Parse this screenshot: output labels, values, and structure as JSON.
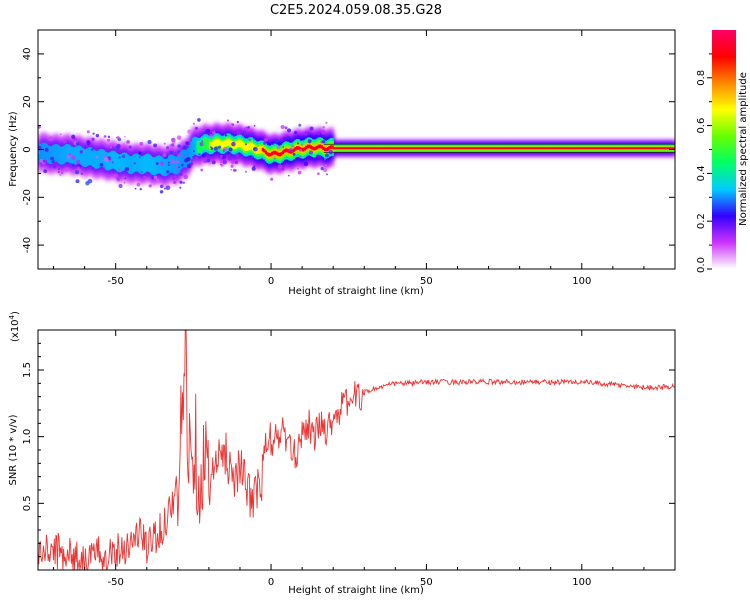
{
  "title": "C2E5.2024.059.08.35.G28",
  "chart_data": [
    {
      "type": "heatmap",
      "xlabel": "Height of straight line (km)",
      "ylabel": "Frequency (Hz)",
      "xlim": [
        -75,
        130
      ],
      "ylim": [
        -50,
        50
      ],
      "xticks": [
        -50,
        0,
        50,
        100
      ],
      "yticks": [
        -40,
        -20,
        0,
        20,
        40
      ],
      "ridge": {
        "x": [
          -75,
          -70,
          -65,
          -60,
          -55,
          -50,
          -45,
          -40,
          -35,
          -30,
          -27,
          -25,
          -22,
          -18,
          -14,
          -10,
          -7,
          -4,
          -2,
          0,
          3,
          6,
          10,
          14,
          18,
          25,
          35,
          50,
          70,
          90,
          100,
          110,
          120,
          130
        ],
        "y": [
          -1,
          -2,
          -2,
          -3,
          -4,
          -5,
          -6,
          -6,
          -7,
          -6,
          -3,
          1,
          2,
          2.5,
          2.5,
          2,
          1,
          0,
          -1,
          -2,
          -1.5,
          -0.5,
          0.5,
          1,
          0.5,
          0.5,
          0.5,
          0.5,
          0.5,
          0.5,
          0.5,
          0.5,
          0.5,
          0.5
        ],
        "amplitude": [
          0.35,
          0.4,
          0.45,
          0.45,
          0.45,
          0.5,
          0.45,
          0.5,
          0.45,
          0.4,
          0.35,
          0.45,
          0.6,
          0.75,
          0.75,
          0.75,
          0.8,
          0.85,
          0.9,
          0.95,
          0.95,
          0.95,
          0.95,
          0.95,
          0.95,
          0.95,
          0.95,
          0.95,
          0.95,
          0.95,
          0.95,
          0.95,
          0.95,
          0.95
        ]
      },
      "colorbar": {
        "label": "Normalized spectral amplitude",
        "range": [
          0,
          1
        ],
        "ticks": [
          0.0,
          0.2,
          0.4,
          0.6,
          0.8
        ],
        "colors": [
          "#ffffff",
          "#cc33ff",
          "#3300ff",
          "#00ccff",
          "#00ff66",
          "#66ff00",
          "#ffff00",
          "#ff8800",
          "#ff0000",
          "#ff0066"
        ]
      }
    },
    {
      "type": "line",
      "xlabel": "Height of straight line (km)",
      "ylabel": "SNR (10 * v/v)",
      "y_multiplier": "(x10",
      "y_multiplier_exp": "4",
      "y_multiplier_close": ")",
      "xlim": [
        -75,
        130
      ],
      "ylim": [
        0.0,
        1.8
      ],
      "xticks": [
        -50,
        0,
        50,
        100
      ],
      "yticks": [
        0.5,
        1.0,
        1.5
      ],
      "ytick_labels": [
        "0.5",
        "1.0",
        "1.5"
      ],
      "color": "#ee3333",
      "x": [
        -75,
        -70,
        -65,
        -60,
        -55,
        -50,
        -45,
        -42,
        -40,
        -38,
        -35,
        -33,
        -30,
        -29,
        -28,
        -27.5,
        -27,
        -26,
        -25,
        -24,
        -23,
        -22,
        -20,
        -18,
        -15,
        -12,
        -10,
        -8,
        -6,
        -4,
        -3,
        -2,
        0,
        2,
        4,
        6,
        8,
        10,
        12,
        14,
        16,
        18,
        20,
        22,
        24,
        26,
        28,
        30,
        32,
        35,
        40,
        45,
        50,
        60,
        70,
        80,
        90,
        100,
        110,
        115,
        120,
        125,
        130
      ],
      "y": [
        0.12,
        0.15,
        0.12,
        0.08,
        0.12,
        0.15,
        0.2,
        0.3,
        0.15,
        0.25,
        0.3,
        0.45,
        0.6,
        1.0,
        1.4,
        1.75,
        1.2,
        0.8,
        1.0,
        0.9,
        0.7,
        0.8,
        0.65,
        0.75,
        0.9,
        0.7,
        0.8,
        0.6,
        0.55,
        0.6,
        0.65,
        0.9,
        0.95,
        1.0,
        1.05,
        0.9,
        0.85,
        1.05,
        1.1,
        1.0,
        1.1,
        1.05,
        1.15,
        1.2,
        1.25,
        1.3,
        1.3,
        1.33,
        1.35,
        1.37,
        1.4,
        1.4,
        1.41,
        1.41,
        1.41,
        1.41,
        1.41,
        1.41,
        1.39,
        1.38,
        1.37,
        1.37,
        1.38
      ]
    }
  ]
}
